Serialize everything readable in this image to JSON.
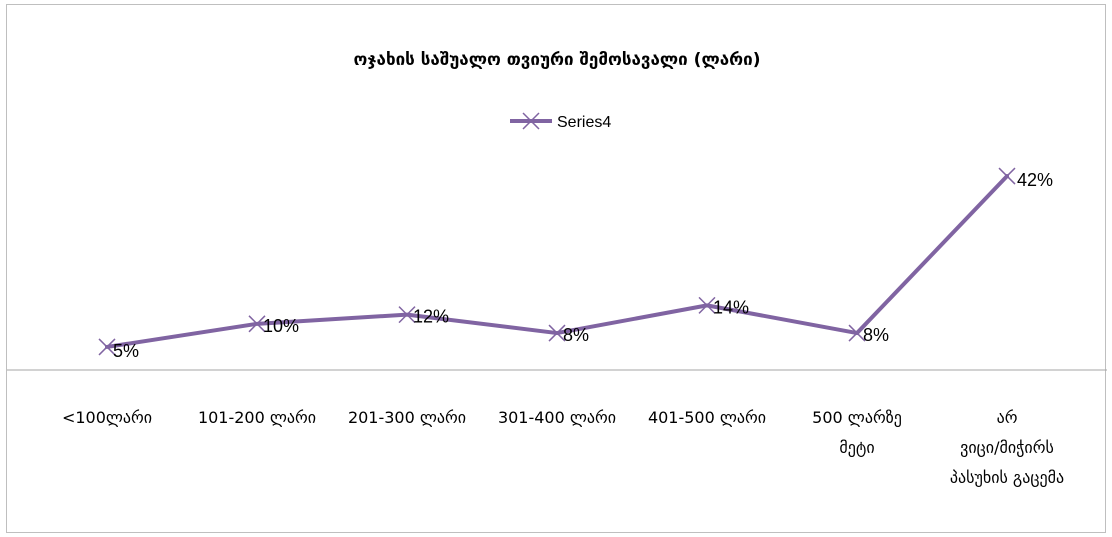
{
  "chart_data": {
    "type": "line",
    "title": "ოჯახის საშუალო თვიური შემოსავალი (ლარი)",
    "categories": [
      "<100ლარი",
      "101-200 ლარი",
      "201-300 ლარი",
      "301-400 ლარი",
      "401-500 ლარი",
      "500 ლარზე მეტი",
      "არ ვიცი/მიჭირს პასუხის გაცემა"
    ],
    "category_lines": [
      [
        "<100ლარი"
      ],
      [
        "101-200 ლარი"
      ],
      [
        "201-300 ლარი"
      ],
      [
        "301-400 ლარი"
      ],
      [
        "401-500 ლარი"
      ],
      [
        "500 ლარზე",
        "მეტი"
      ],
      [
        "არ",
        "ვიცი/მიჭირს",
        "პასუხის გაცემა"
      ]
    ],
    "series": [
      {
        "name": "Series4",
        "values": [
          5,
          10,
          12,
          8,
          14,
          8,
          42
        ],
        "labels": [
          "5%",
          "10%",
          "12%",
          "8%",
          "14%",
          "8%",
          "42%"
        ],
        "color": "#8064a2",
        "marker": "x"
      }
    ],
    "ylim": [
      0,
      47
    ],
    "legend_position": "top-center",
    "grid": false,
    "xlabel": "",
    "ylabel": ""
  }
}
